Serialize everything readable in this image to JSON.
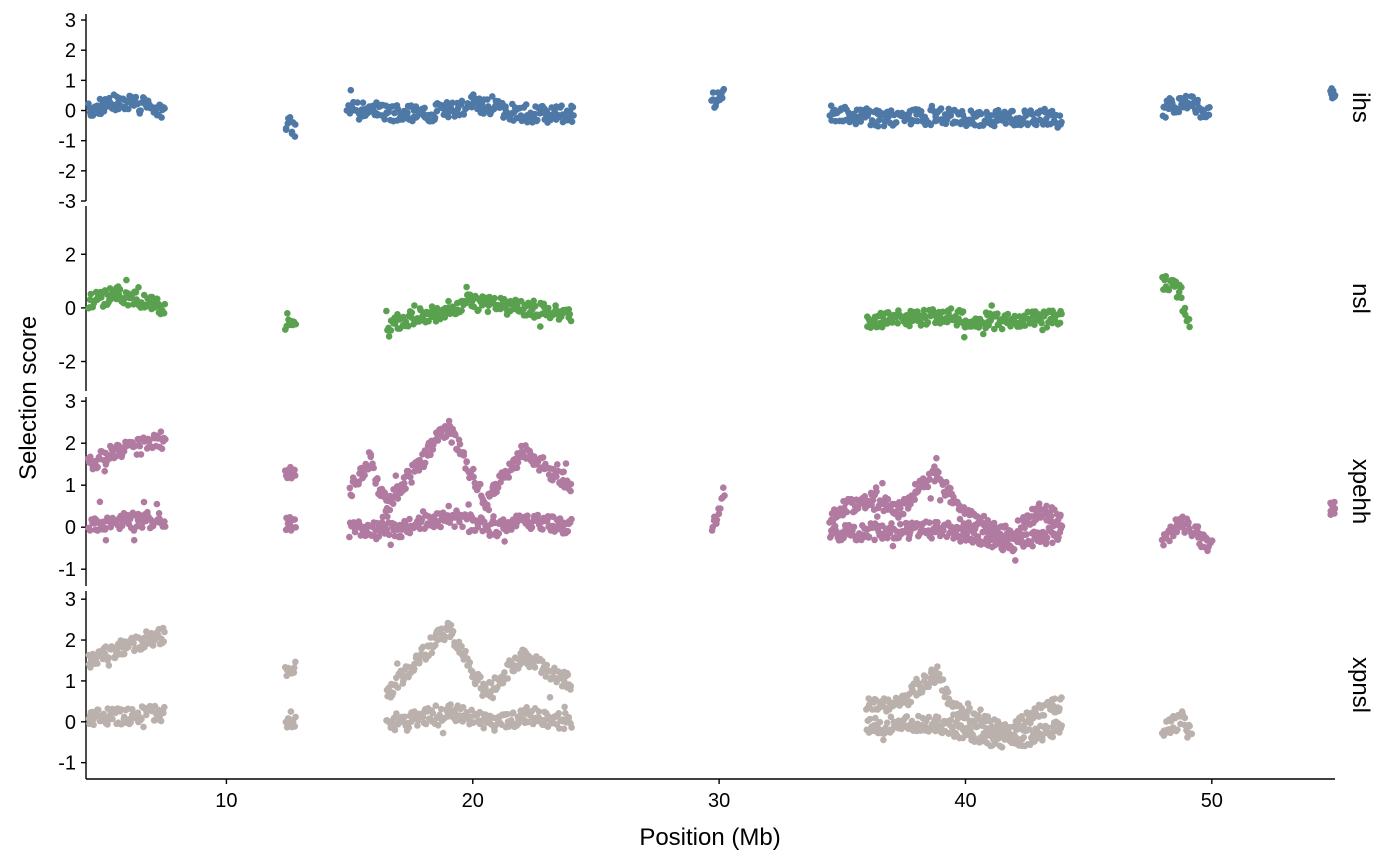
{
  "chart_data": {
    "type": "scatter",
    "facets": "rows",
    "xlabel": "Position (Mb)",
    "ylabel": "Selection score",
    "xlim": [
      4.3,
      55.0
    ],
    "x_ticks": [
      10,
      20,
      30,
      40,
      50
    ],
    "grid": false,
    "legend": "none",
    "panels": [
      {
        "name": "ihs",
        "color": "#4E79A7",
        "ylim": [
          -3.0,
          3.2
        ],
        "y_ticks": [
          -3,
          -2,
          -1,
          0,
          1,
          2,
          3
        ],
        "segments": [
          {
            "x": [
              4.4,
              5.6,
              7.5
            ],
            "y": [
              0.0,
              0.3,
              0.05
            ]
          },
          {
            "x": [
              12.4,
              12.8
            ],
            "y": [
              -0.5,
              -0.5
            ]
          },
          {
            "x": [
              14.9,
              16.6,
              18.2,
              20.0,
              22.2,
              24.1
            ],
            "y": [
              0.2,
              -0.1,
              -0.1,
              0.2,
              -0.15,
              -0.1
            ]
          },
          {
            "x": [
              29.7,
              30.2
            ],
            "y": [
              0.3,
              0.6
            ]
          },
          {
            "x": [
              34.5,
              36.5,
              38.8,
              41.0,
              43.9
            ],
            "y": [
              -0.1,
              -0.25,
              -0.2,
              -0.25,
              -0.3
            ]
          },
          {
            "x": [
              48.0,
              48.8,
              49.9
            ],
            "y": [
              0.0,
              0.3,
              0.0
            ]
          },
          {
            "x": [
              54.8,
              55.0
            ],
            "y": [
              0.5,
              0.5
            ]
          }
        ]
      },
      {
        "name": "nsl",
        "color": "#59A14F",
        "ylim": [
          -3.1,
          3.8
        ],
        "y_ticks": [
          -2,
          0,
          2
        ],
        "segments": [
          {
            "x": [
              4.4,
              5.6,
              7.5
            ],
            "y": [
              0.2,
              0.5,
              0.0
            ]
          },
          {
            "x": [
              12.4,
              12.8
            ],
            "y": [
              -0.5,
              -0.5
            ]
          },
          {
            "x": [
              16.5,
              18.0,
              19.8,
              22.0,
              24.0
            ],
            "y": [
              -0.6,
              -0.3,
              0.2,
              0.0,
              -0.2
            ]
          },
          {
            "x": [
              36.0,
              38.8,
              41.0,
              43.9
            ],
            "y": [
              -0.5,
              -0.3,
              -0.5,
              -0.4
            ]
          },
          {
            "x": [
              48.0,
              48.7,
              49.1
            ],
            "y": [
              1.0,
              0.6,
              -0.8
            ]
          }
        ]
      },
      {
        "name": "xpehh",
        "color": "#B07AA1",
        "ylim": [
          -1.4,
          3.1
        ],
        "y_ticks": [
          -1,
          0,
          1,
          2,
          3
        ],
        "segments": [
          {
            "x": [
              4.4,
              5.5,
              7.5
            ],
            "y": [
              1.5,
              1.8,
              2.05
            ]
          },
          {
            "x": [
              4.4,
              7.5
            ],
            "y": [
              0.1,
              0.18
            ]
          },
          {
            "x": [
              12.4,
              12.8
            ],
            "y": [
              1.3,
              1.3
            ]
          },
          {
            "x": [
              12.4,
              12.8
            ],
            "y": [
              0.05,
              0.05
            ]
          },
          {
            "x": [
              15.0,
              15.8,
              16.5,
              19.0
            ],
            "y": [
              0.9,
              1.6,
              0.5,
              2.4
            ]
          },
          {
            "x": [
              19.0,
              20.5,
              22.0,
              24.0
            ],
            "y": [
              2.4,
              0.6,
              1.8,
              1.0
            ]
          },
          {
            "x": [
              15.0,
              16.8,
              19.0,
              21.0,
              22.2,
              24.0
            ],
            "y": [
              -0.05,
              -0.1,
              0.25,
              -0.05,
              0.15,
              0.0
            ]
          },
          {
            "x": [
              29.7,
              30.2
            ],
            "y": [
              -0.05,
              0.8
            ]
          },
          {
            "x": [
              34.5,
              36.2,
              37.3,
              38.8,
              39.8,
              41.8,
              43.0,
              43.9
            ],
            "y": [
              0.3,
              0.7,
              0.4,
              1.3,
              0.3,
              -0.2,
              0.4,
              0.2
            ]
          },
          {
            "x": [
              34.5,
              38.8,
              41.8,
              43.9
            ],
            "y": [
              -0.15,
              -0.05,
              -0.4,
              -0.15
            ]
          },
          {
            "x": [
              48.0,
              48.8,
              50.0
            ],
            "y": [
              -0.25,
              0.1,
              -0.5
            ]
          },
          {
            "x": [
              54.8,
              55.0
            ],
            "y": [
              0.4,
              0.4
            ]
          }
        ]
      },
      {
        "name": "xpnsl",
        "color": "#BAB0AC",
        "ylim": [
          -1.4,
          3.2
        ],
        "y_ticks": [
          -1,
          0,
          1,
          2,
          3
        ],
        "segments": [
          {
            "x": [
              4.4,
              5.5,
              7.5
            ],
            "y": [
              1.45,
              1.75,
              2.1
            ]
          },
          {
            "x": [
              4.4,
              7.5
            ],
            "y": [
              0.1,
              0.2
            ]
          },
          {
            "x": [
              12.4,
              12.8
            ],
            "y": [
              1.3,
              1.3
            ]
          },
          {
            "x": [
              12.4,
              12.8
            ],
            "y": [
              0.05,
              0.05
            ]
          },
          {
            "x": [
              16.5,
              19.0
            ],
            "y": [
              0.7,
              2.3
            ]
          },
          {
            "x": [
              19.0,
              20.5,
              22.0,
              24.0
            ],
            "y": [
              2.3,
              0.7,
              1.6,
              0.95
            ]
          },
          {
            "x": [
              16.5,
              19.0,
              21.0,
              22.2,
              24.0
            ],
            "y": [
              -0.05,
              0.25,
              -0.05,
              0.15,
              0.0
            ]
          },
          {
            "x": [
              36.0,
              37.3,
              38.8,
              39.5,
              41.8,
              43.0,
              43.9
            ],
            "y": [
              0.5,
              0.4,
              1.2,
              0.3,
              -0.3,
              0.3,
              0.4
            ]
          },
          {
            "x": [
              36.0,
              38.8,
              41.8,
              43.9
            ],
            "y": [
              -0.1,
              -0.05,
              -0.5,
              -0.15
            ]
          },
          {
            "x": [
              48.0,
              48.8,
              49.2
            ],
            "y": [
              -0.2,
              0.05,
              -0.35
            ]
          }
        ]
      }
    ]
  }
}
